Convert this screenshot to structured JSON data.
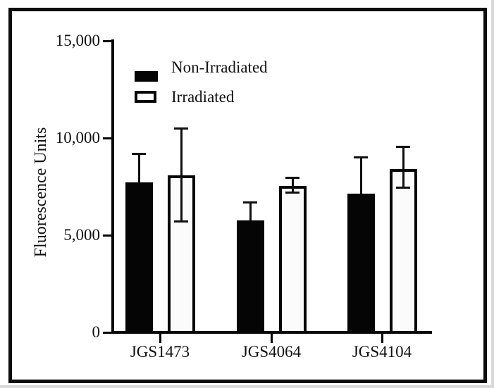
{
  "figure": {
    "background_color": "#ffffff",
    "border_color": "#0c0c0c"
  },
  "chart_data": {
    "type": "bar",
    "title": "",
    "xlabel": "",
    "ylabel": "Fluorescence Units",
    "categories": [
      "JGS1473",
      "JGS4064",
      "JGS4104"
    ],
    "series": [
      {
        "name": "Non-Irradiated",
        "style": "filled-black",
        "values": [
          7700,
          5750,
          7150
        ],
        "error_up": [
          1500,
          950,
          1850
        ],
        "error_down": [
          null,
          null,
          null
        ]
      },
      {
        "name": "Irradiated",
        "style": "open-white",
        "values": [
          8080,
          7530,
          8400
        ],
        "error_up": [
          2400,
          440,
          1130
        ],
        "error_down": [
          2380,
          320,
          940
        ]
      }
    ],
    "ylim": [
      0,
      15000
    ],
    "yticks": [
      {
        "value": 0,
        "label": "0"
      },
      {
        "value": 5000,
        "label": "5,000"
      },
      {
        "value": 10000,
        "label": "10,000"
      },
      {
        "value": 15000,
        "label": "15,000"
      }
    ],
    "grid": false,
    "legend_position": "top-left-inside",
    "error_bar_style": "caps",
    "colors": {
      "filled_bar": "#050505",
      "open_bar_fill": "#fbfbfb",
      "axis": "#060606"
    }
  }
}
